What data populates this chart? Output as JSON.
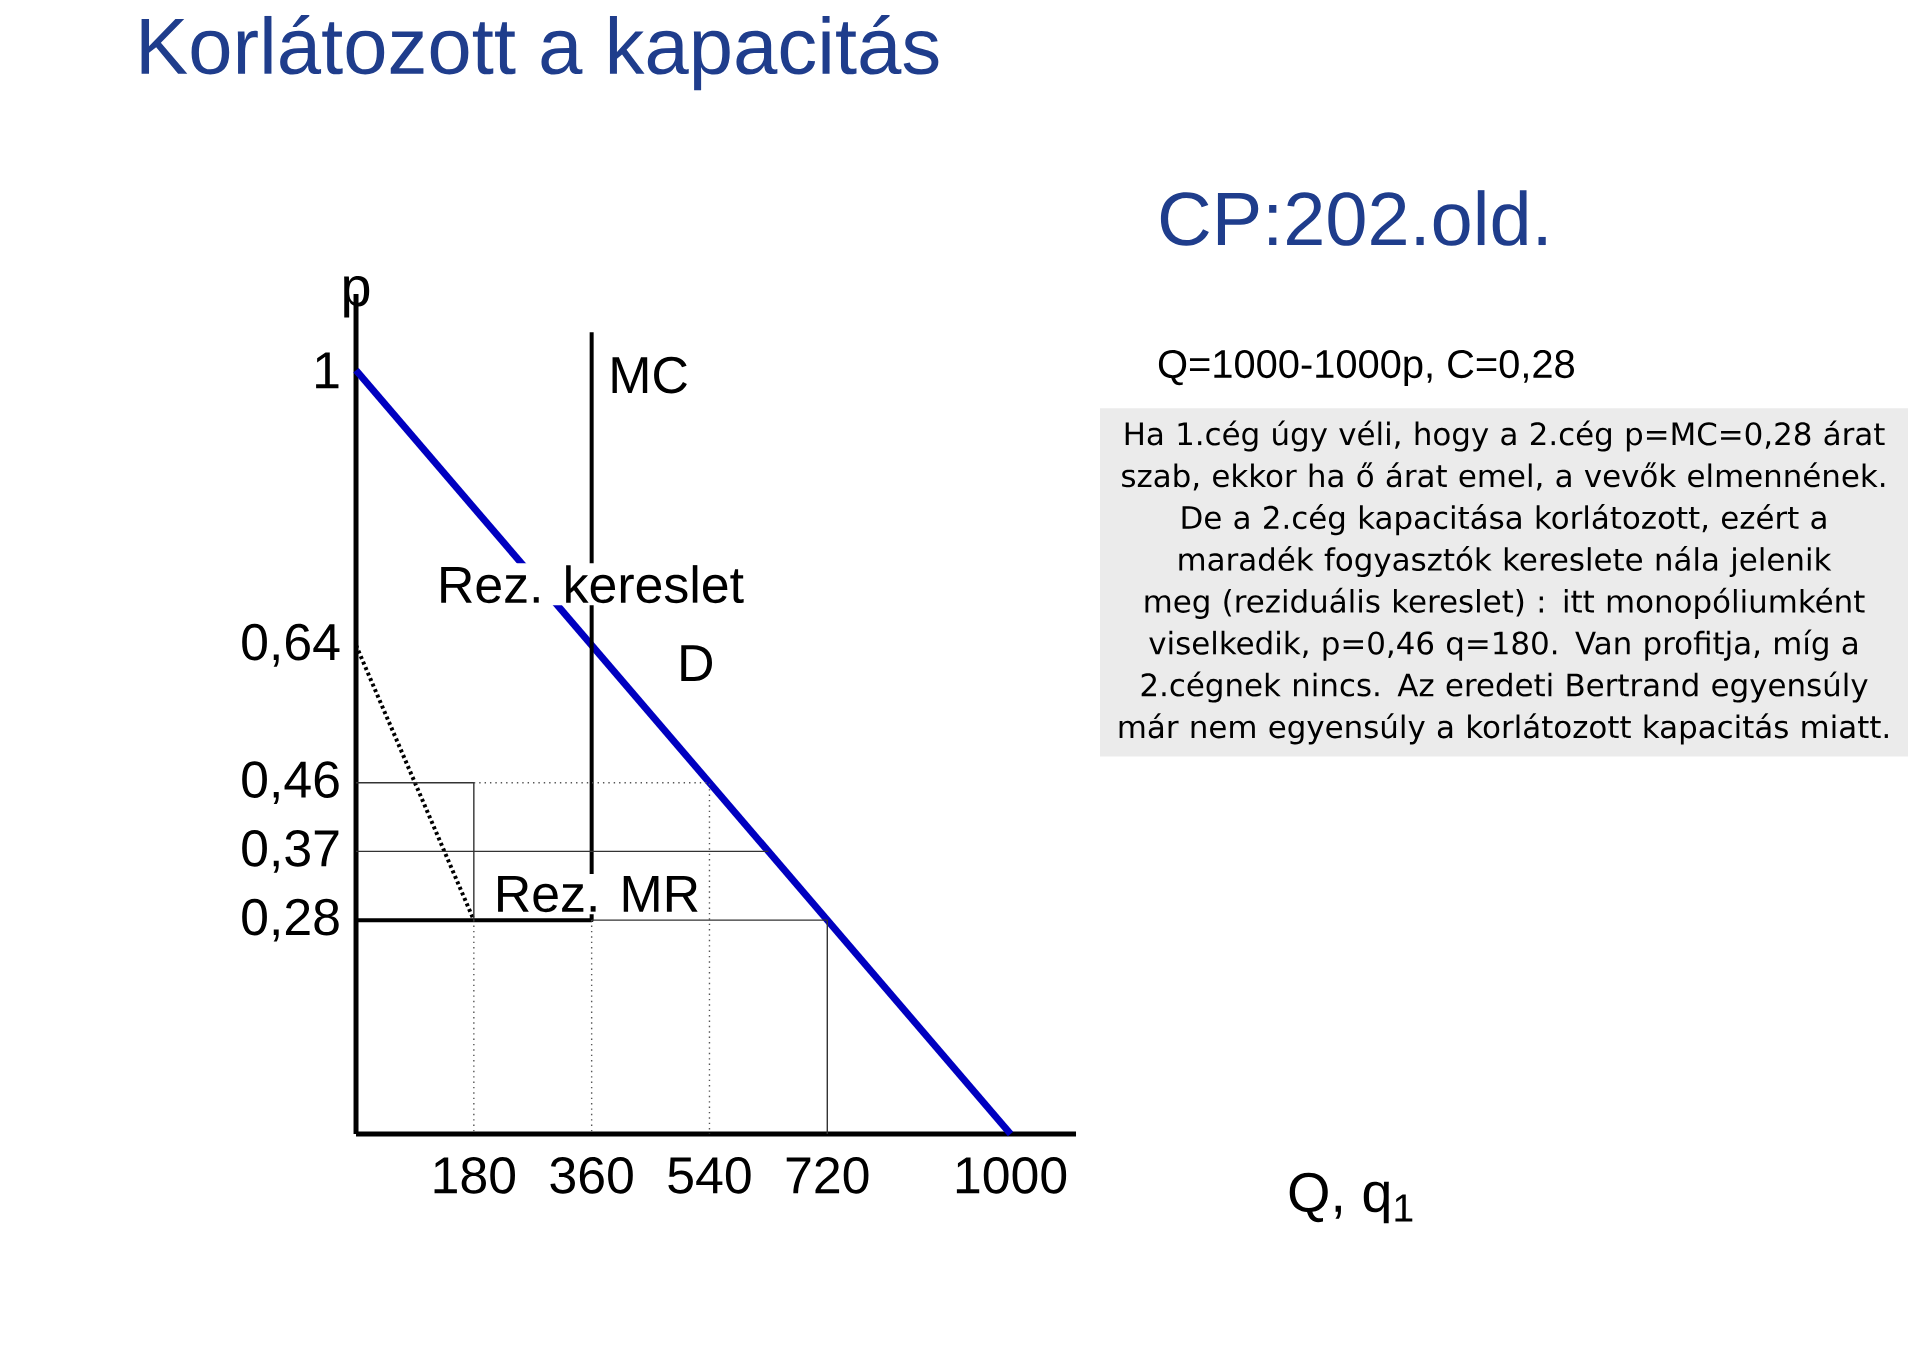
{
  "chart_data": {
    "type": "line",
    "title": "Korlátozott a kapacitás",
    "xlabel": "Q, q$_{1}$",
    "ylabel": "p",
    "xlim": [
      0,
      1100
    ],
    "ylim": [
      0,
      1.1
    ],
    "xticks": [
      180,
      360,
      540,
      720,
      1000
    ],
    "yticks": [
      {
        "value": 0.28,
        "label": "0,28"
      },
      {
        "value": 0.37,
        "label": "0,37"
      },
      {
        "value": 0.46,
        "label": "0,46"
      },
      {
        "value": 0.64,
        "label": "0,64"
      },
      {
        "value": 1,
        "label": "1"
      }
    ],
    "series": [
      {
        "name": "D",
        "color": "#0000c0",
        "x": [
          0,
          1000
        ],
        "values": [
          1,
          0
        ]
      },
      {
        "name": "MC",
        "color": "#000000",
        "x": [
          0,
          360,
          360
        ],
        "values": [
          0.28,
          0.28,
          1.05
        ]
      },
      {
        "name": "Rez. MR",
        "color": "#000000",
        "x": [
          0,
          180
        ],
        "values": [
          0.64,
          0.28
        ],
        "line_style": "dotted"
      },
      {
        "color": "#333333",
        "x": [
          0,
          180,
          180
        ],
        "values": [
          0.46,
          0.46,
          0.28
        ]
      },
      {
        "color": "#555555",
        "x": [
          180,
          540,
          540
        ],
        "values": [
          0.46,
          0.46,
          0
        ],
        "line_style": "dotted"
      },
      {
        "color": "#555555",
        "x": [
          180,
          180
        ],
        "values": [
          0.28,
          0
        ],
        "line_style": "dotted"
      },
      {
        "color": "#333333",
        "x": [
          0,
          630
        ],
        "values": [
          0.37,
          0.37
        ]
      },
      {
        "color": "#333333",
        "x": [
          360,
          720,
          720
        ],
        "values": [
          0.28,
          0.28,
          0
        ]
      },
      {
        "color": "#555555",
        "x": [
          360,
          360
        ],
        "values": [
          0.28,
          0
        ],
        "line_style": "dotted"
      }
    ],
    "annotations": [
      "CP:202.old.",
      "Q=1000-1000p, C=0,28",
      "Ha 1.cég úgy véli, hogy a 2.cég p=MC=0,28 árat szab, ekkor ha ő árat emel, a vevők elmennének. De a 2.cég kapacitása korlátozott, ezért a maradék fogyasztók kereslete nála jelenik meg (reziduális kereslet) : itt monopóliumként viselkedik, p=0,46 q=180. Van profitja, míg a 2.cégnek nincs. Az eredeti Bertrand egyensúly már nem egyensúly a korlátozott kapacitás miatt.",
      "Rez. kereslet"
    ]
  }
}
